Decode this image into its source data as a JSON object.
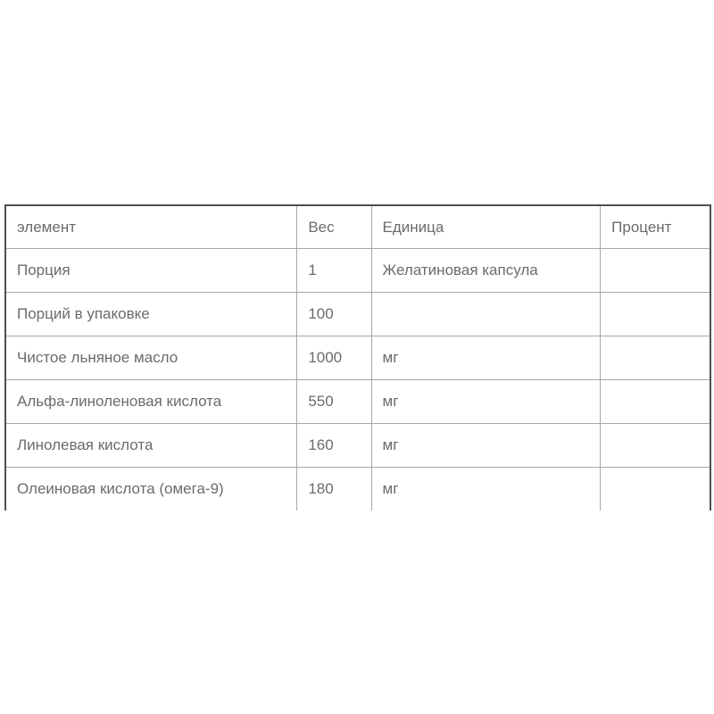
{
  "page": {
    "background_color": "#ffffff",
    "text_color": "#6b6b6b",
    "outer_border_color": "#4f4f4f",
    "inner_border_color": "#a8a8a8"
  },
  "table": {
    "columns": [
      "элемент",
      "Вес",
      "Единица",
      "Процент"
    ],
    "rows": [
      [
        "Порция",
        "1",
        "Желатиновая капсула",
        ""
      ],
      [
        "Порций в упаковке",
        "100",
        "",
        ""
      ],
      [
        "Чистое льняное масло",
        "1000",
        "мг",
        ""
      ],
      [
        "Альфа-линоленовая кислота",
        "550",
        "мг",
        ""
      ],
      [
        "Линолевая кислота",
        "160",
        "мг",
        ""
      ],
      [
        "Олеиновая кислота (омега-9)",
        "180",
        "мг",
        ""
      ]
    ]
  }
}
